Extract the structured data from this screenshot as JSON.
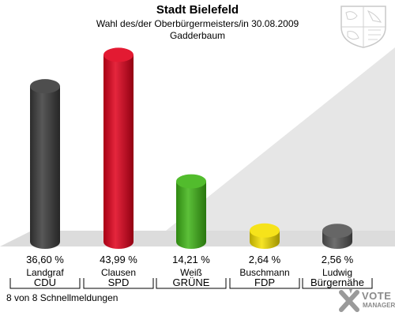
{
  "header": {
    "title": "Stadt Bielefeld",
    "subtitle": "Wahl des/der Oberbürgermeisters/in 30.08.2009",
    "district": "Gadderbaum"
  },
  "footer": {
    "reports": "8 von 8 Schnellmeldungen"
  },
  "logo": {
    "line1": "VOTE",
    "line2": "MANAGER"
  },
  "chart_data": {
    "type": "bar",
    "categories": [
      "CDU",
      "SPD",
      "GRÜNE",
      "FDP",
      "Bürgernähe"
    ],
    "candidates": [
      "Landgraf",
      "Clausen",
      "Weiß",
      "Buschmann",
      "Ludwig"
    ],
    "values": [
      36.6,
      43.99,
      14.21,
      2.64,
      2.56
    ],
    "value_labels": [
      "36,60 %",
      "43,99 %",
      "14,21 %",
      "2,64 %",
      "2,56 %"
    ],
    "colors": [
      "#3a3a3a",
      "#e0001b",
      "#3fb516",
      "#f5e000",
      "#555555"
    ],
    "ylim": [
      0,
      45
    ]
  }
}
